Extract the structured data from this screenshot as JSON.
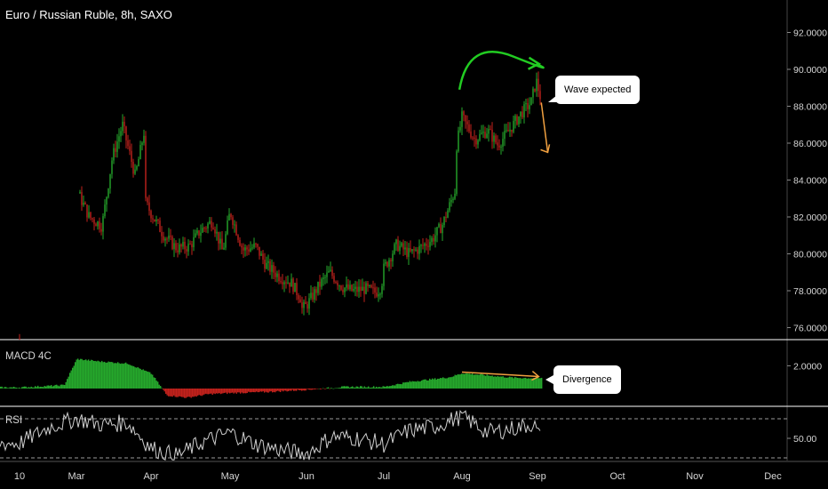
{
  "header": {
    "title": "Euro / Russian Ruble, 8h, SAXO"
  },
  "panes": {
    "macd_label": "MACD 4C",
    "rsi_label": "RSI"
  },
  "annotations": {
    "wave_note": "Wave expected",
    "divergence_note": "Divergence"
  },
  "colors": {
    "background": "#000000",
    "up": "#26a82c",
    "down": "#c2221c",
    "pane_border": "#ffffff",
    "axis_text": "#d6d6d6",
    "arrow_green": "#22cc22",
    "arrow_orange": "#f0a040",
    "rsi_line": "#cfcfcf"
  },
  "chart_data": [
    {
      "type": "candlestick",
      "title": "Euro / Russian Ruble, 8h, SAXO",
      "x_tick_labels": [
        "10",
        "Mar",
        "Apr",
        "May",
        "Jun",
        "Jul",
        "Aug",
        "Sep",
        "Oct",
        "Nov",
        "Dec"
      ],
      "y_tick_labels": [
        "92.0000",
        "90.0000",
        "88.0000",
        "86.0000",
        "84.0000",
        "82.0000",
        "80.0000",
        "78.0000",
        "76.0000"
      ],
      "ylim": [
        75.3,
        93.3
      ],
      "path": [
        [
          "10",
          75.4
        ],
        [
          "10.1",
          76.2
        ],
        [
          "Mar",
          83.5
        ],
        [
          "Mar+5",
          82.0
        ],
        [
          "Mar+10",
          81.5
        ],
        [
          "Mar+14",
          85.2
        ],
        [
          "Mar+18",
          87.0
        ],
        [
          "Mar+23",
          84.2
        ],
        [
          "Mar+27",
          87.0
        ],
        [
          "Apr-3",
          83.0
        ],
        [
          "Apr",
          82.2
        ],
        [
          "Apr+5",
          81.0
        ],
        [
          "Apr+10",
          80.3
        ],
        [
          "Apr+15",
          80.4
        ],
        [
          "Apr+19",
          81.2
        ],
        [
          "Apr+24",
          81.8
        ],
        [
          "Apr+28",
          80.1
        ],
        [
          "May",
          82.3
        ],
        [
          "May+5",
          80.2
        ],
        [
          "May+10",
          80.4
        ],
        [
          "May+14",
          79.4
        ],
        [
          "May+19",
          78.8
        ],
        [
          "May+24",
          78.4
        ],
        [
          "May+28",
          77.5
        ],
        [
          "Jun-4",
          76.8
        ],
        [
          "Jun",
          77.2
        ],
        [
          "Jun+5",
          78.3
        ],
        [
          "Jun+9",
          79.0
        ],
        [
          "Jun+14",
          78.2
        ],
        [
          "Jun+18",
          78.0
        ],
        [
          "Jun+23",
          78.1
        ],
        [
          "Jun+27",
          77.9
        ],
        [
          "Jul-1",
          78.2
        ],
        [
          "Jul",
          79.2
        ],
        [
          "Jul+5",
          80.5
        ],
        [
          "Jul+10",
          80.0
        ],
        [
          "Jul+14",
          80.3
        ],
        [
          "Jul+19",
          80.8
        ],
        [
          "Jul+23",
          81.6
        ],
        [
          "Jul+28",
          83.5
        ],
        [
          "Aug-3",
          85.2
        ],
        [
          "Aug",
          87.4
        ],
        [
          "Aug+5",
          86.2
        ],
        [
          "Aug+10",
          86.7
        ],
        [
          "Aug+14",
          85.9
        ],
        [
          "Aug+19",
          86.8
        ],
        [
          "Aug+23",
          87.6
        ],
        [
          "Aug+27",
          88.2
        ],
        [
          "Aug+29",
          89.4
        ],
        [
          "Aug+31",
          88.3
        ]
      ],
      "forecast_arrow": {
        "from": [
          "Aug+31",
          88.2
        ],
        "to": [
          "Sep+4",
          85.5
        ]
      },
      "wave_arc": {
        "from": [
          "Aug-1",
          88.9
        ],
        "peak": [
          "Aug+20",
          90.7
        ],
        "to": [
          "Aug+29",
          90.3
        ]
      }
    },
    {
      "type": "bar",
      "name": "MACD 4C",
      "y_tick_labels": [
        "2.0000"
      ],
      "levels_by_date": [
        [
          "10",
          0.1
        ],
        [
          "Mar-5",
          0.3
        ],
        [
          "Mar",
          2.6
        ],
        [
          "Mar+8",
          2.4
        ],
        [
          "Mar+20",
          2.2
        ],
        [
          "Apr",
          1.3
        ],
        [
          "Apr+6",
          -0.6
        ],
        [
          "Apr+14",
          -0.8
        ],
        [
          "Apr+22",
          -0.5
        ],
        [
          "May",
          -0.4
        ],
        [
          "May+15",
          -0.3
        ],
        [
          "Jun",
          -0.1
        ],
        [
          "Jun+15",
          0.15
        ],
        [
          "Jul",
          0.15
        ],
        [
          "Jul+10",
          0.6
        ],
        [
          "Aug-5",
          1.0
        ],
        [
          "Aug",
          1.35
        ],
        [
          "Aug+10",
          1.15
        ],
        [
          "Aug+20",
          0.95
        ],
        [
          "Aug+31",
          0.9
        ]
      ],
      "divergence_arrow": {
        "from": [
          "Aug",
          1.45
        ],
        "to": [
          "Aug+30",
          1.05
        ]
      }
    },
    {
      "type": "line",
      "name": "RSI",
      "y_tick_labels": [
        "50.00"
      ],
      "guide_levels": [
        70,
        30
      ],
      "levels_by_date": [
        [
          "10",
          45
        ],
        [
          "Mar-10",
          62
        ],
        [
          "Mar",
          70
        ],
        [
          "Mar+10",
          64
        ],
        [
          "Mar+20",
          66
        ],
        [
          "Apr",
          40
        ],
        [
          "Apr+10",
          32
        ],
        [
          "Apr+20",
          46
        ],
        [
          "May",
          56
        ],
        [
          "May+10",
          44
        ],
        [
          "May+20",
          38
        ],
        [
          "Jun",
          34
        ],
        [
          "Jun+10",
          52
        ],
        [
          "Jun+20",
          50
        ],
        [
          "Jul",
          44
        ],
        [
          "Jul+10",
          58
        ],
        [
          "Jul+20",
          62
        ],
        [
          "Aug",
          73
        ],
        [
          "Aug+10",
          56
        ],
        [
          "Aug+20",
          60
        ],
        [
          "Aug+28",
          65
        ],
        [
          "Aug+31",
          48
        ]
      ]
    }
  ]
}
